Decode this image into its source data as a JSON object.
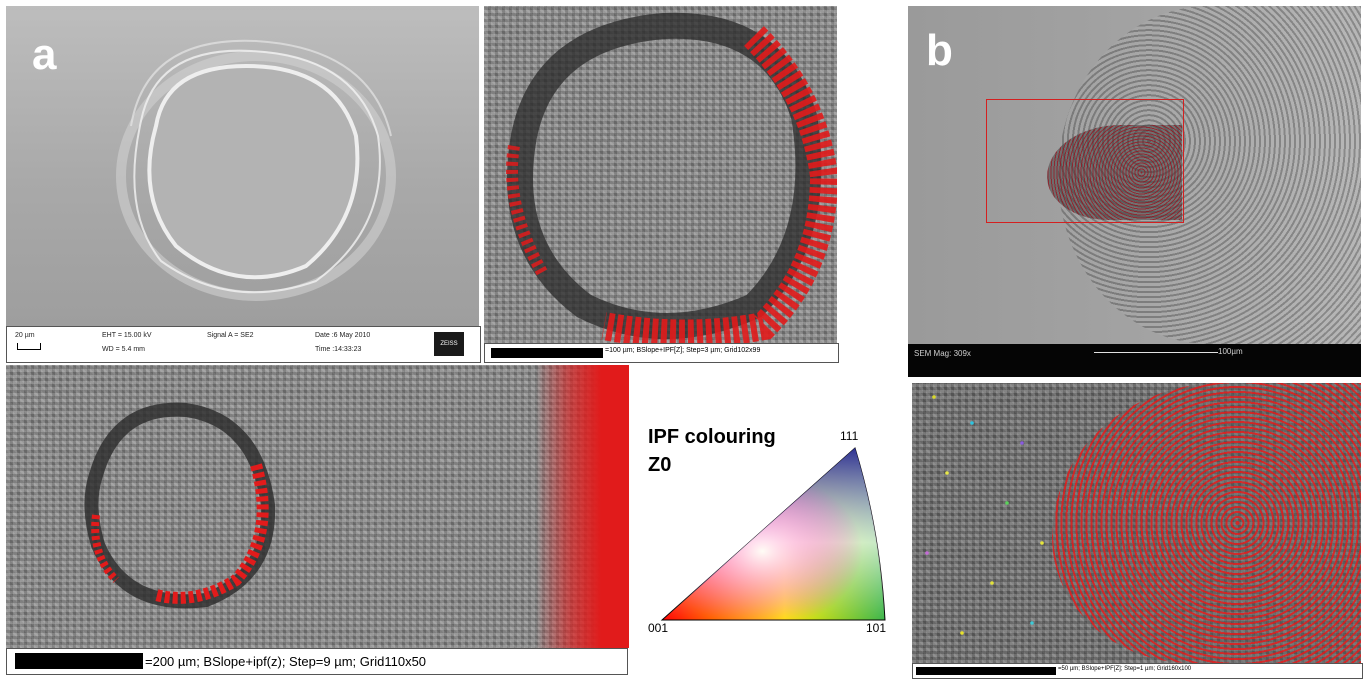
{
  "panel_a": {
    "letter": "a",
    "sem_info": {
      "scale": "20 µm",
      "eht": "EHT = 15.00 kV",
      "wd": "WD = 5.4 mm",
      "signal": "Signal A = SE2",
      "date": "Date :6 May 2010",
      "time": "Time :14:33:23",
      "logo": "ZEISS"
    },
    "map_top_caption": "=100 µm; BSlope+IPF[Z]; Step=3 µm; Grid102x99",
    "map_bottom_caption": "=200 µm; BSlope+ipf(z); Step=9 µm; Grid110x50"
  },
  "ipf_key": {
    "title_line1": "IPF colouring",
    "title_line2": "Z0",
    "corner_111": "111",
    "corner_001": "001",
    "corner_101": "101"
  },
  "panel_b": {
    "letter": "b",
    "sem_mag": "SEM Mag: 309x",
    "scale": "100µm",
    "map_caption": "=50 µm; BSlope+IPF[Z]; Step=1 µm; Grid160x100"
  },
  "colors": {
    "highlight_red": "#e11b1b",
    "ipf_red": "#ff0000",
    "ipf_green": "#3bb54a",
    "ipf_blue": "#2e3192"
  }
}
